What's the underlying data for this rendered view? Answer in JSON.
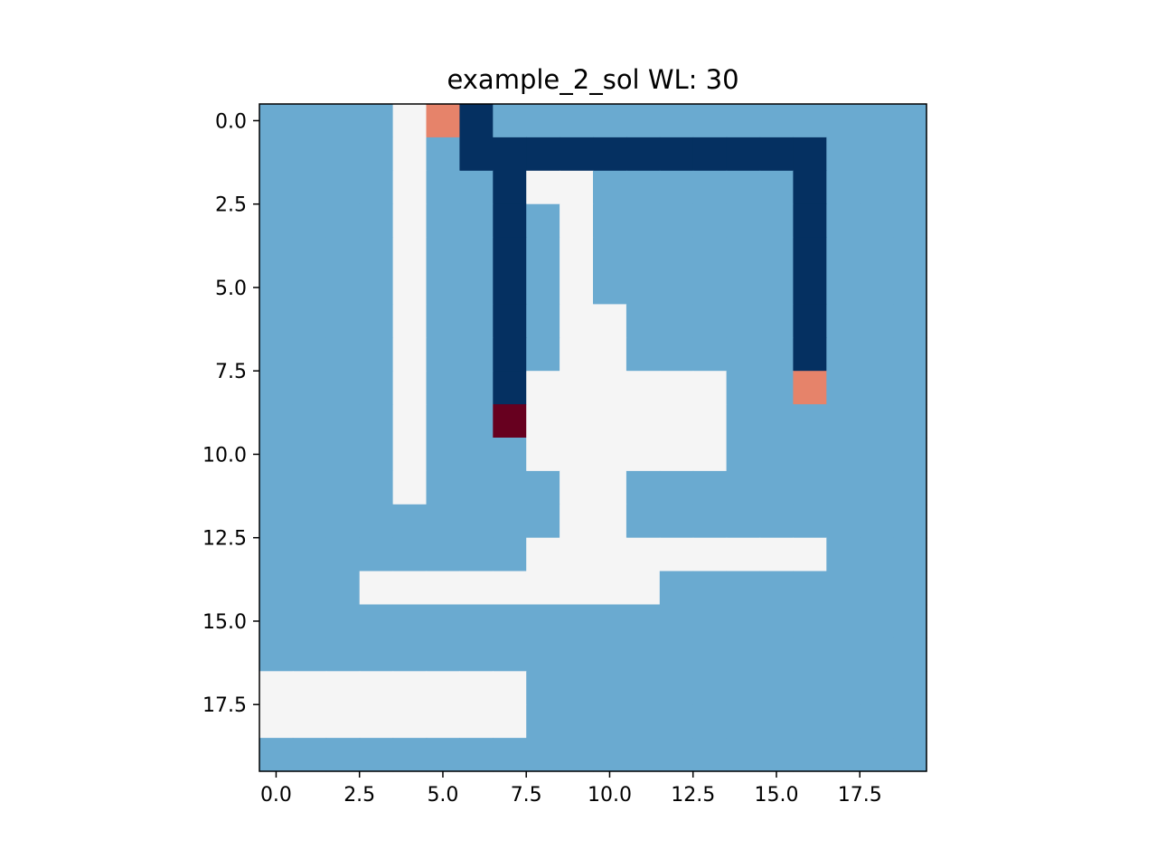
{
  "chart_data": {
    "type": "heatmap",
    "title": "example_2_sol WL: 30",
    "xlabel": "",
    "ylabel": "",
    "xlim": [
      -0.5,
      19.5
    ],
    "ylim": [
      19.5,
      -0.5
    ],
    "xticks": [
      0.0,
      2.5,
      5.0,
      7.5,
      10.0,
      12.5,
      15.0,
      17.5
    ],
    "yticks": [
      0.0,
      2.5,
      5.0,
      7.5,
      10.0,
      12.5,
      15.0,
      17.5
    ],
    "xtick_labels": [
      "0.0",
      "2.5",
      "5.0",
      "7.5",
      "10.0",
      "12.5",
      "15.0",
      "17.5"
    ],
    "ytick_labels": [
      "0.0",
      "2.5",
      "5.0",
      "7.5",
      "10.0",
      "12.5",
      "15.0",
      "17.5"
    ],
    "grid": false,
    "colors": {
      "0": "#f5f5f5",
      "1": "#6aaad0",
      "2": "#e6836a",
      "3": "#67001f",
      "4": "#053061"
    },
    "cell_values": [
      "11110241111111111111",
      "11110144444444444111",
      "11110114001111114111",
      "11110114101111114111",
      "11110114101111114111",
      "11110114101111114111",
      "11110114100111114111",
      "11110114100111114111",
      "11110114000000112111",
      "11110113000000111111",
      "11110111000000111111",
      "11110111100111111111",
      "11111111100111111111",
      "11111111000000000111",
      "11100000000011111111",
      "11111111111111111111",
      "11111111111111111111",
      "00000000111111111111",
      "00000000111111111111",
      "11111111111111111111"
    ]
  }
}
